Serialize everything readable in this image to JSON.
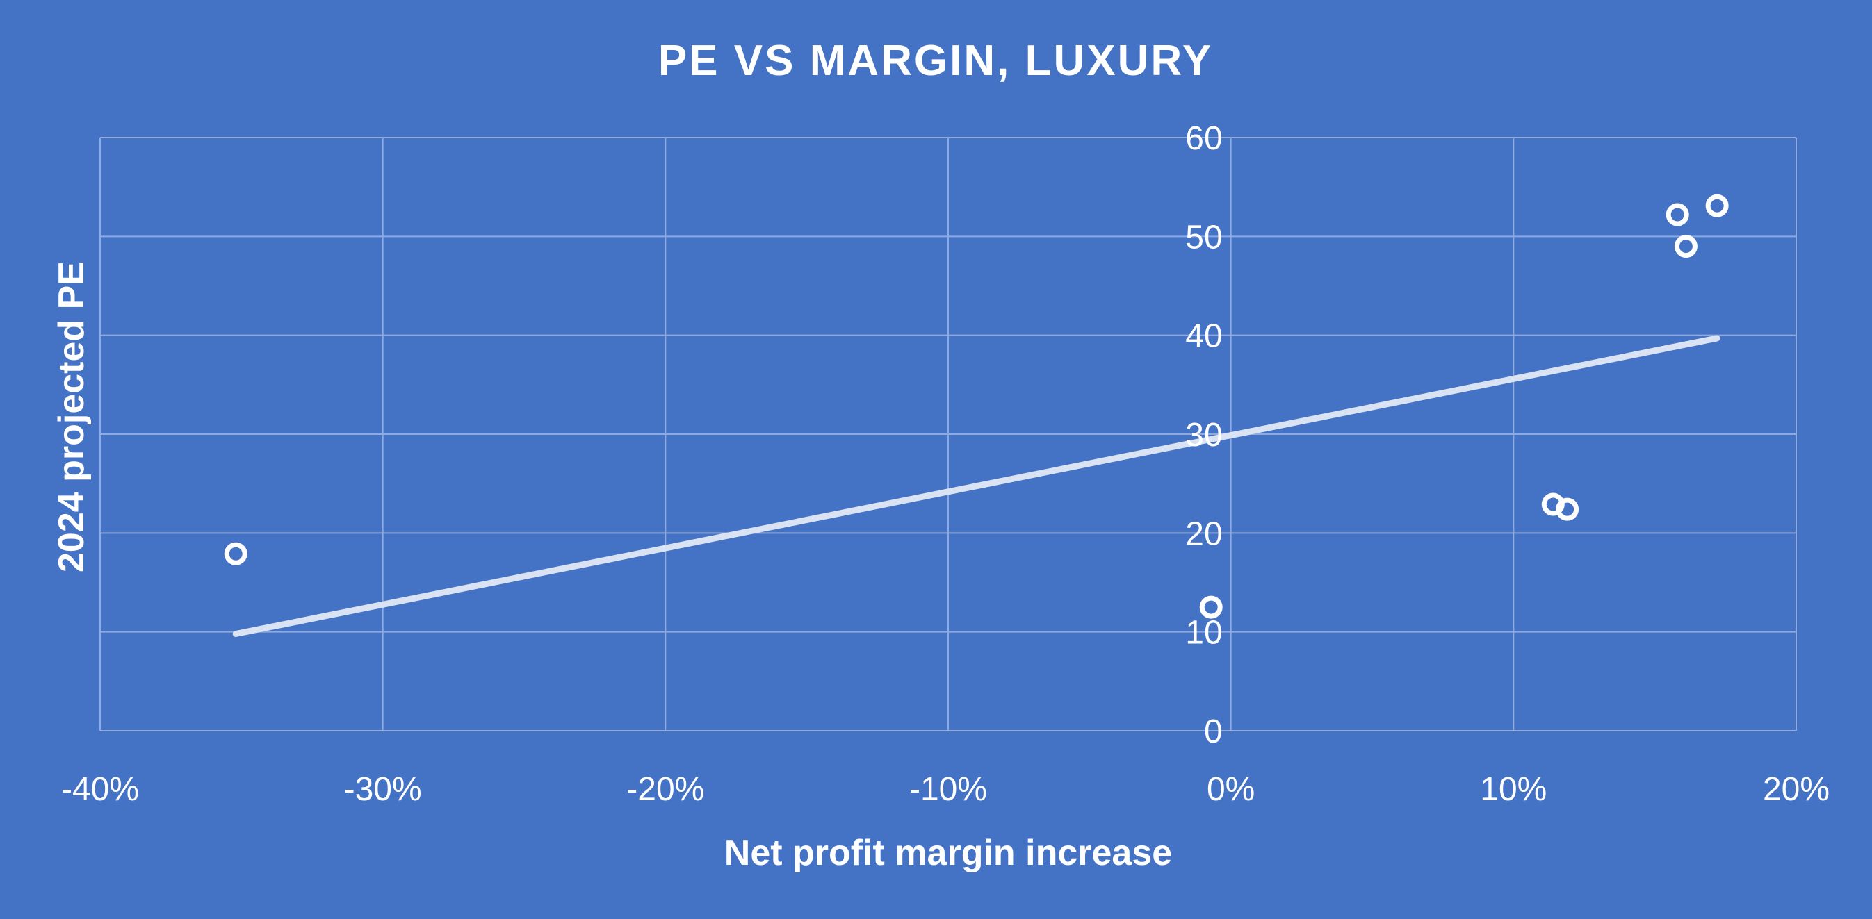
{
  "chart_data": {
    "type": "scatter",
    "title": "PE VS MARGIN, LUXURY",
    "xlabel": "Net profit margin increase",
    "ylabel": "2024 projected PE",
    "xlim": [
      -0.4,
      0.2
    ],
    "ylim": [
      0,
      60
    ],
    "x_ticks": [
      -0.4,
      -0.3,
      -0.2,
      -0.1,
      0,
      0.1,
      0.2
    ],
    "x_tick_labels": [
      "-40%",
      "-30%",
      "-20%",
      "-10%",
      "0%",
      "10%",
      "20%"
    ],
    "y_ticks": [
      0,
      10,
      20,
      30,
      40,
      50,
      60
    ],
    "y_tick_labels": [
      "0",
      "10",
      "20",
      "30",
      "40",
      "50",
      "60"
    ],
    "grid": true,
    "legend": "none",
    "colors": {
      "background": "#4472C4",
      "grid": "#8FAADC",
      "marker": "#FFFFFF",
      "trendline": "#DAE3F3",
      "text": "#FFFFFF"
    },
    "series": [
      {
        "marker": "hollow-circle",
        "points": [
          {
            "x": -0.352,
            "y": 17.9
          },
          {
            "x": -0.007,
            "y": 12.5
          },
          {
            "x": 0.114,
            "y": 22.9
          },
          {
            "x": 0.119,
            "y": 22.4
          },
          {
            "x": 0.158,
            "y": 52.2
          },
          {
            "x": 0.161,
            "y": 49.0
          },
          {
            "x": 0.172,
            "y": 53.1
          }
        ]
      }
    ],
    "trendline": {
      "type": "linear",
      "x_start": -0.352,
      "x_end": 0.172,
      "y_start": 9.8,
      "y_end": 39.7
    }
  }
}
